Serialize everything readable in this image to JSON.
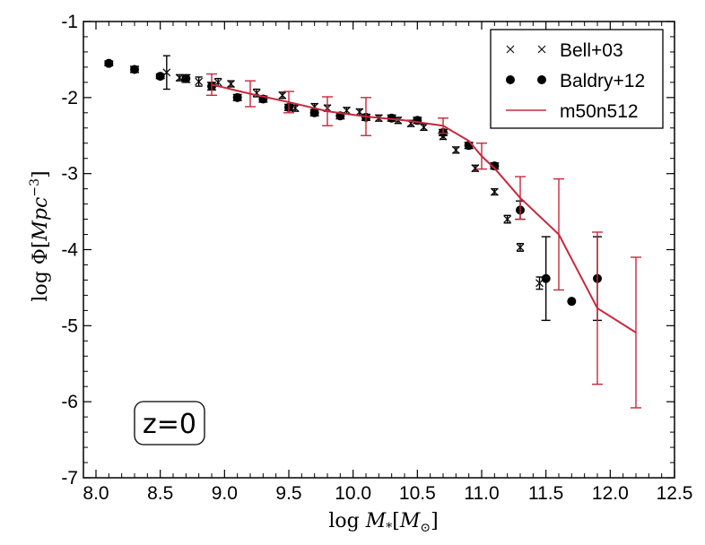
{
  "chart_data": {
    "type": "scatter",
    "title": "",
    "xlabel": "log M_*[M_⊙]",
    "ylabel": "log Φ[Mpc^-3]",
    "xlim": [
      8.0,
      12.5
    ],
    "ylim": [
      -7,
      -1
    ],
    "xticks": [
      8.0,
      8.5,
      9.0,
      9.5,
      10.0,
      10.5,
      11.0,
      11.5,
      12.0,
      12.5
    ],
    "xtick_labels": [
      "8.0",
      "8.5",
      "9.0",
      "9.5",
      "10.0",
      "10.5",
      "11.0",
      "11.5",
      "12.0",
      "12.5"
    ],
    "yticks": [
      -1,
      -2,
      -3,
      -4,
      -5,
      -6,
      -7
    ],
    "ytick_labels": [
      "-1",
      "-2",
      "-3",
      "-4",
      "-5",
      "-6",
      "-7"
    ],
    "grid": false,
    "legend_position": "top-right",
    "legend": [
      "Bell+03",
      "Baldry+12",
      "m50n512"
    ],
    "annotation": "z=0",
    "series": [
      {
        "name": "Bell+03",
        "marker": "x",
        "color": "#000000",
        "points": [
          {
            "x": 8.55,
            "y": -1.67,
            "err": 0.22
          },
          {
            "x": 8.65,
            "y": -1.74,
            "err": 0.04
          },
          {
            "x": 8.8,
            "y": -1.79,
            "err": 0.06
          },
          {
            "x": 8.95,
            "y": -1.8,
            "err": 0.05
          },
          {
            "x": 9.05,
            "y": -1.82,
            "err": 0.04
          },
          {
            "x": 9.25,
            "y": -1.94,
            "err": 0.05
          },
          {
            "x": 9.45,
            "y": -1.97,
            "err": 0.04
          },
          {
            "x": 9.55,
            "y": -2.14,
            "err": 0.04
          },
          {
            "x": 9.7,
            "y": -2.12,
            "err": 0.04
          },
          {
            "x": 9.8,
            "y": -2.14,
            "err": 0.04
          },
          {
            "x": 9.95,
            "y": -2.17,
            "err": 0.04
          },
          {
            "x": 10.05,
            "y": -2.19,
            "err": 0.04
          },
          {
            "x": 10.2,
            "y": -2.27,
            "err": 0.04
          },
          {
            "x": 10.35,
            "y": -2.3,
            "err": 0.04
          },
          {
            "x": 10.45,
            "y": -2.34,
            "err": 0.04
          },
          {
            "x": 10.55,
            "y": -2.39,
            "err": 0.04
          },
          {
            "x": 10.7,
            "y": -2.51,
            "err": 0.04
          },
          {
            "x": 10.8,
            "y": -2.69,
            "err": 0.04
          },
          {
            "x": 10.95,
            "y": -2.93,
            "err": 0.04
          },
          {
            "x": 11.1,
            "y": -3.24,
            "err": 0.04
          },
          {
            "x": 11.2,
            "y": -3.6,
            "err": 0.05
          },
          {
            "x": 11.3,
            "y": -3.97,
            "err": 0.05
          },
          {
            "x": 11.45,
            "y": -4.44,
            "err": 0.08
          }
        ]
      },
      {
        "name": "Baldry+12",
        "marker": "o",
        "color": "#000000",
        "points": [
          {
            "x": 8.1,
            "y": -1.55,
            "err": 0.03
          },
          {
            "x": 8.3,
            "y": -1.63,
            "err": 0.04
          },
          {
            "x": 8.5,
            "y": -1.72,
            "err": 0.03
          },
          {
            "x": 8.7,
            "y": -1.75,
            "err": 0.05
          },
          {
            "x": 8.9,
            "y": -1.85,
            "err": 0.05
          },
          {
            "x": 9.1,
            "y": -2.0,
            "err": 0.04
          },
          {
            "x": 9.3,
            "y": -2.02,
            "err": 0.04
          },
          {
            "x": 9.5,
            "y": -2.13,
            "err": 0.04
          },
          {
            "x": 9.7,
            "y": -2.2,
            "err": 0.04
          },
          {
            "x": 9.9,
            "y": -2.24,
            "err": 0.04
          },
          {
            "x": 10.1,
            "y": -2.26,
            "err": 0.04
          },
          {
            "x": 10.3,
            "y": -2.27,
            "err": 0.04
          },
          {
            "x": 10.5,
            "y": -2.3,
            "err": 0.04
          },
          {
            "x": 10.7,
            "y": -2.46,
            "err": 0.04
          },
          {
            "x": 10.9,
            "y": -2.63,
            "err": 0.04
          },
          {
            "x": 11.1,
            "y": -2.9,
            "err": 0.04
          },
          {
            "x": 11.3,
            "y": -3.48,
            "err": 0.12
          },
          {
            "x": 11.5,
            "y": -4.38,
            "err": 0.55
          },
          {
            "x": 11.7,
            "y": -4.68,
            "err": 0.0
          },
          {
            "x": 11.9,
            "y": -4.38,
            "err": 0.55
          }
        ]
      },
      {
        "name": "m50n512",
        "marker": "line",
        "color": "#c8283c",
        "points": [
          {
            "x": 8.9,
            "y": -1.83,
            "err": 0.14
          },
          {
            "x": 9.2,
            "y": -1.95,
            "err": 0.17
          },
          {
            "x": 9.5,
            "y": -2.06,
            "err": 0.14
          },
          {
            "x": 9.8,
            "y": -2.18,
            "err": 0.19
          },
          {
            "x": 10.1,
            "y": -2.25,
            "err": 0.25
          },
          {
            "x": 10.4,
            "y": -2.3,
            "err": 0.0
          },
          {
            "x": 10.7,
            "y": -2.37,
            "err": 0.1
          },
          {
            "x": 10.9,
            "y": -2.57,
            "err": 0.0
          },
          {
            "x": 11.0,
            "y": -2.77,
            "err": 0.17
          },
          {
            "x": 11.1,
            "y": -2.93,
            "err": 0.0
          },
          {
            "x": 11.3,
            "y": -3.32,
            "err": 0.28
          },
          {
            "x": 11.6,
            "y": -3.8,
            "err": 0.73
          },
          {
            "x": 11.9,
            "y": -4.77,
            "err": 1.0
          },
          {
            "x": 12.2,
            "y": -5.09,
            "err": 0.99
          }
        ]
      }
    ]
  }
}
